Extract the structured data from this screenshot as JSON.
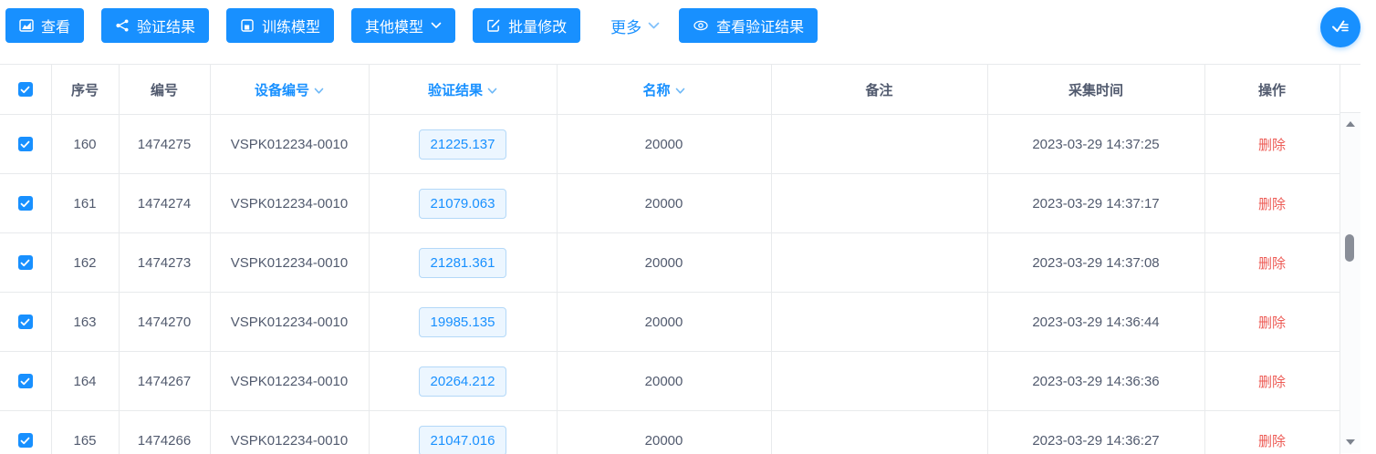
{
  "toolbar": {
    "buttons": [
      {
        "label": "查看",
        "icon": "chart-icon"
      },
      {
        "label": "验证结果",
        "icon": "share-icon"
      },
      {
        "label": "训练模型",
        "icon": "save-icon"
      },
      {
        "label": "其他模型",
        "icon": "chevron-down-icon"
      },
      {
        "label": "批量修改",
        "icon": "edit-icon"
      }
    ],
    "more": {
      "label": "更多",
      "icon": "chevron-down-icon"
    },
    "view_verify_button": {
      "label": "查看验证结果",
      "icon": "eye-icon"
    },
    "fab": {
      "icon": "check-list-icon"
    }
  },
  "table": {
    "all_selected": true,
    "columns": [
      {
        "key": "select",
        "label": "",
        "type": "checkbox",
        "sortable": false
      },
      {
        "key": "index",
        "label": "序号",
        "sortable": false
      },
      {
        "key": "number",
        "label": "编号",
        "sortable": false
      },
      {
        "key": "device",
        "label": "设备编号",
        "sortable": true
      },
      {
        "key": "result",
        "label": "验证结果",
        "sortable": true
      },
      {
        "key": "name",
        "label": "名称",
        "sortable": true
      },
      {
        "key": "remark",
        "label": "备注",
        "sortable": false
      },
      {
        "key": "time",
        "label": "采集时间",
        "sortable": false
      },
      {
        "key": "action",
        "label": "操作",
        "sortable": false
      }
    ],
    "rows": [
      {
        "checked": true,
        "index": "160",
        "number": "1474275",
        "device": "VSPK012234-0010",
        "result": "21225.137",
        "name": "20000",
        "remark": "",
        "time": "2023-03-29 14:37:25",
        "action": "删除"
      },
      {
        "checked": true,
        "index": "161",
        "number": "1474274",
        "device": "VSPK012234-0010",
        "result": "21079.063",
        "name": "20000",
        "remark": "",
        "time": "2023-03-29 14:37:17",
        "action": "删除"
      },
      {
        "checked": true,
        "index": "162",
        "number": "1474273",
        "device": "VSPK012234-0010",
        "result": "21281.361",
        "name": "20000",
        "remark": "",
        "time": "2023-03-29 14:37:08",
        "action": "删除"
      },
      {
        "checked": true,
        "index": "163",
        "number": "1474270",
        "device": "VSPK012234-0010",
        "result": "19985.135",
        "name": "20000",
        "remark": "",
        "time": "2023-03-29 14:36:44",
        "action": "删除"
      },
      {
        "checked": true,
        "index": "164",
        "number": "1474267",
        "device": "VSPK012234-0010",
        "result": "20264.212",
        "name": "20000",
        "remark": "",
        "time": "2023-03-29 14:36:36",
        "action": "删除"
      },
      {
        "checked": true,
        "index": "165",
        "number": "1474266",
        "device": "VSPK012234-0010",
        "result": "21047.016",
        "name": "20000",
        "remark": "",
        "time": "2023-03-29 14:36:27",
        "action": "删除"
      }
    ]
  },
  "colors": {
    "primary": "#1890ff",
    "badge_bg": "#ecf6ff",
    "badge_border": "#b3d8f8",
    "danger": "#ed5b55",
    "border": "#e8eaec",
    "text": "#515a6e"
  }
}
